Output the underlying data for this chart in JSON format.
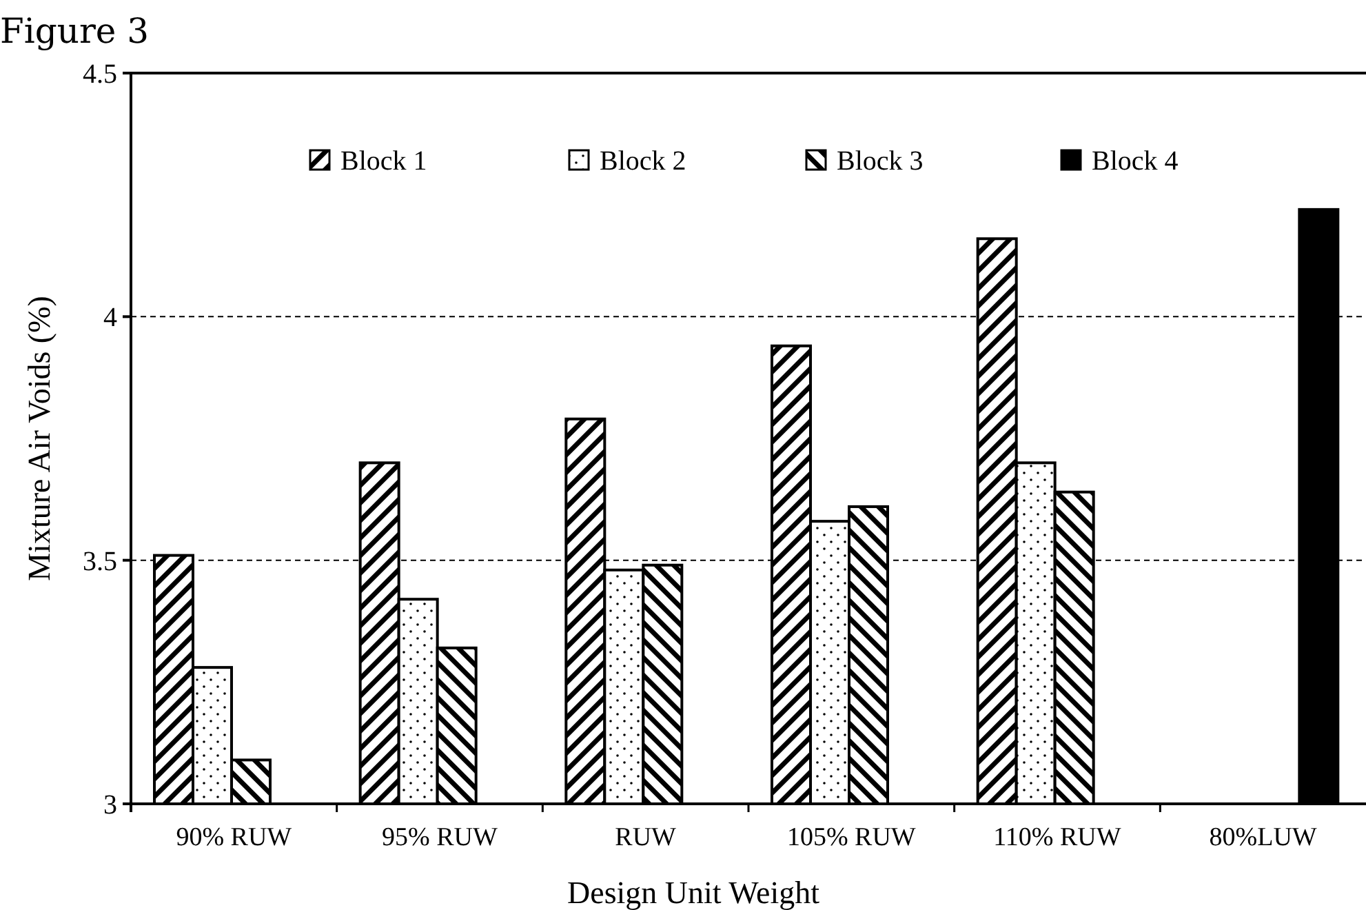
{
  "chart_data": {
    "type": "bar",
    "title": "Figure 3",
    "xlabel": "Design Unit Weight",
    "ylabel": "Mixture Air Voids (%)",
    "categories": [
      "90% RUW",
      "95% RUW",
      "RUW",
      "105% RUW",
      "110% RUW",
      "80%LUW"
    ],
    "series": [
      {
        "name": "Block 1",
        "color": "#000000",
        "values": [
          3.51,
          3.7,
          3.79,
          3.94,
          4.16,
          null
        ]
      },
      {
        "name": "Block 2",
        "color": "#000000",
        "values": [
          3.28,
          3.42,
          3.48,
          3.58,
          3.7,
          null
        ]
      },
      {
        "name": "Block 3",
        "color": "#000000",
        "values": [
          3.09,
          3.32,
          3.49,
          3.61,
          3.64,
          null
        ]
      },
      {
        "name": "Block 4",
        "color": "#000000",
        "values": [
          null,
          null,
          null,
          null,
          null,
          4.22
        ]
      }
    ],
    "ylim": [
      3,
      4.5
    ],
    "yticks": [
      3,
      3.5,
      4,
      4.5
    ],
    "grid": "y",
    "legend": "top"
  }
}
